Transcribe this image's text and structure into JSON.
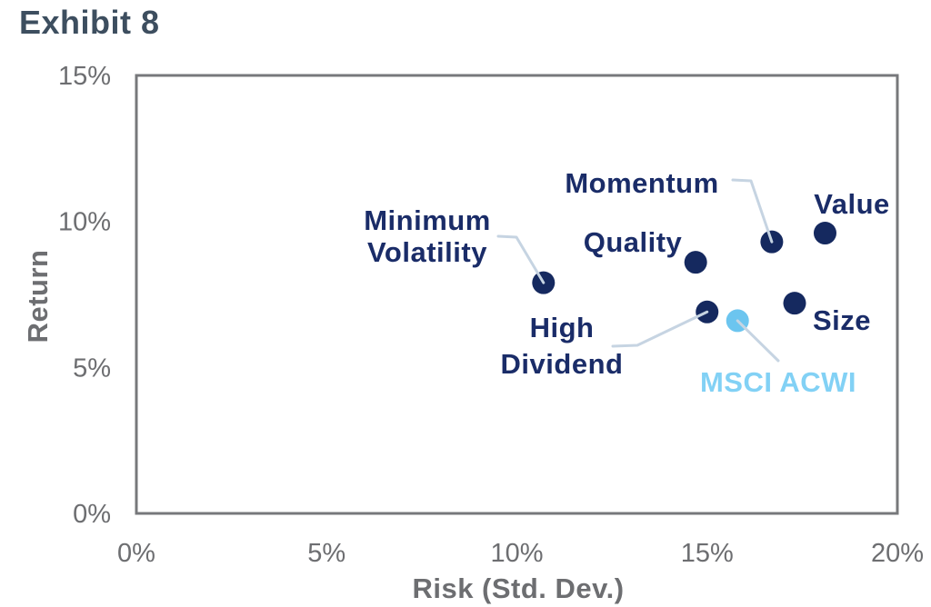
{
  "page": {
    "title": "Exhibit 8"
  },
  "colors": {
    "title": "#3d4e5f",
    "navy_dot": "#15295f",
    "navy_label": "#1a2c68",
    "light_blue_dot": "#6cc5ef",
    "light_blue_label": "#82d1f5",
    "axis_text": "#6d6e71",
    "axis_line": "#77787b",
    "leader_line": "#c6d4e2"
  },
  "chart_data": {
    "type": "scatter",
    "title": "Exhibit 8",
    "xlabel": "Risk (Std. Dev.)",
    "ylabel": "Return",
    "xlim": [
      0,
      20
    ],
    "ylim": [
      0,
      15
    ],
    "grid": false,
    "legend_position": "none (points labeled directly with callout lines)",
    "x_ticks": [
      {
        "value": 0,
        "label": "0%"
      },
      {
        "value": 5,
        "label": "5%"
      },
      {
        "value": 10,
        "label": "10%"
      },
      {
        "value": 15,
        "label": "15%"
      },
      {
        "value": 20,
        "label": "20%"
      }
    ],
    "y_ticks": [
      {
        "value": 0,
        "label": "0%"
      },
      {
        "value": 5,
        "label": "5%"
      },
      {
        "value": 10,
        "label": "10%"
      },
      {
        "value": 15,
        "label": "15%"
      }
    ],
    "points": [
      {
        "name": "Minimum Volatility",
        "x": 10.7,
        "y": 7.9,
        "series": "factor"
      },
      {
        "name": "Quality",
        "x": 14.7,
        "y": 8.6,
        "series": "factor"
      },
      {
        "name": "Momentum",
        "x": 16.7,
        "y": 9.3,
        "series": "factor"
      },
      {
        "name": "Value",
        "x": 18.1,
        "y": 9.6,
        "series": "factor"
      },
      {
        "name": "Size",
        "x": 17.3,
        "y": 7.2,
        "series": "factor"
      },
      {
        "name": "High Dividend",
        "x": 15.0,
        "y": 6.9,
        "series": "factor"
      },
      {
        "name": "MSCI ACWI",
        "x": 15.8,
        "y": 6.6,
        "series": "benchmark"
      }
    ]
  }
}
